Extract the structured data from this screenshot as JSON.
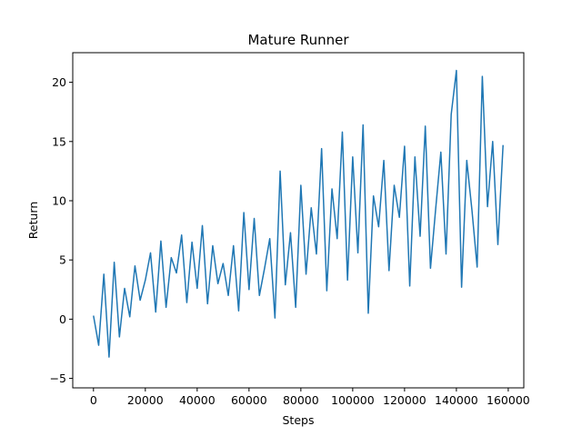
{
  "chart_data": {
    "type": "line",
    "title": "Mature Runner",
    "xlabel": "Steps",
    "ylabel": "Return",
    "xlim": [
      -8000,
      166000
    ],
    "ylim": [
      -5.8,
      22.5
    ],
    "xticks": [
      0,
      20000,
      40000,
      60000,
      80000,
      100000,
      120000,
      140000,
      160000
    ],
    "yticks": [
      -5,
      0,
      5,
      10,
      15,
      20
    ],
    "grid": false,
    "legend": "none",
    "line_color": "#1f77b4",
    "series": [
      {
        "x": [
          0,
          2000,
          4000,
          6000,
          8000,
          10000,
          12000,
          14000,
          16000,
          18000,
          20000,
          22000,
          24000,
          26000,
          28000,
          30000,
          32000,
          34000,
          36000,
          38000,
          40000,
          42000,
          44000,
          46000,
          48000,
          50000,
          52000,
          54000,
          56000,
          58000,
          60000,
          62000,
          64000,
          66000,
          68000,
          70000,
          72000,
          74000,
          76000,
          78000,
          80000,
          82000,
          84000,
          86000,
          88000,
          90000,
          92000,
          94000,
          96000,
          98000,
          100000,
          102000,
          104000,
          106000,
          108000,
          110000,
          112000,
          114000,
          116000,
          118000,
          120000,
          122000,
          124000,
          126000,
          128000,
          130000,
          132000,
          134000,
          136000,
          138000,
          140000,
          142000,
          144000,
          146000,
          148000,
          150000,
          152000,
          154000,
          156000,
          158000
        ],
        "values": [
          0.3,
          -2.2,
          3.8,
          -3.2,
          4.8,
          -1.5,
          2.6,
          0.2,
          4.5,
          1.6,
          3.3,
          5.6,
          0.6,
          6.6,
          1.0,
          5.2,
          3.9,
          7.1,
          1.4,
          6.5,
          2.6,
          7.9,
          1.3,
          6.2,
          3.0,
          4.7,
          2.0,
          6.2,
          0.7,
          9.0,
          2.5,
          8.5,
          2.0,
          4.3,
          6.8,
          0.1,
          12.5,
          2.9,
          7.3,
          1.0,
          11.3,
          3.8,
          9.4,
          5.5,
          14.4,
          2.4,
          11.0,
          6.8,
          15.8,
          3.3,
          13.7,
          5.6,
          16.4,
          0.5,
          10.4,
          7.8,
          13.4,
          4.1,
          11.3,
          8.6,
          14.6,
          2.8,
          13.7,
          7.0,
          16.3,
          4.3,
          9.3,
          14.1,
          5.5,
          17.3,
          21.0,
          2.7,
          13.4,
          9.2,
          4.4,
          20.5,
          9.5,
          15.0,
          6.3,
          14.7
        ]
      }
    ]
  }
}
